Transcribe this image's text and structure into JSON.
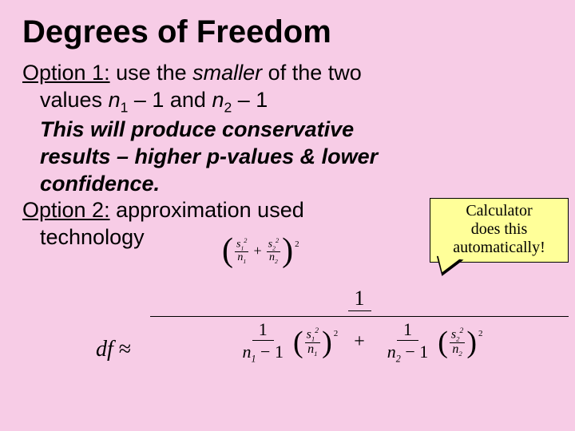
{
  "title": "Degrees of Freedom",
  "option1": {
    "label": "Option 1:",
    "line1_a": " use the ",
    "line1_smaller": "smaller",
    "line1_b": " of the two",
    "line2_a": "values ",
    "n1": "n",
    "sub1": "1",
    "minus1a": " – 1 and ",
    "n2": "n",
    "sub2": "2",
    "minus1b": " – 1",
    "note1": "This will produce conservative",
    "note2": "results – higher p-values & lower",
    "note3": "confidence."
  },
  "option2": {
    "label": "Option 2:",
    "line1": " approximation used",
    "line2": "technology"
  },
  "callout": {
    "l1": "Calculator",
    "l2": "does this",
    "l3": "automatically!"
  },
  "formula": {
    "df": "df",
    "approx": "≈",
    "s": "s",
    "n": "n",
    "one": "1",
    "two": "2",
    "sq": "2",
    "plus": "+",
    "minus1": " − 1"
  },
  "colors": {
    "background": "#f7cce6",
    "callout_bg": "#ffff99",
    "text": "#000000"
  }
}
